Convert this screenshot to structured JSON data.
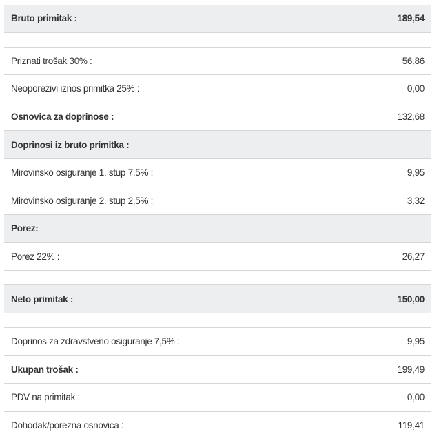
{
  "rows": [
    {
      "type": "header",
      "label": "Bruto primitak :",
      "value": "189,54"
    },
    {
      "type": "spacer"
    },
    {
      "type": "row",
      "label": "Priznati trošak 30% :",
      "value": "56,86"
    },
    {
      "type": "row",
      "label": "Neoporezivi iznos primitka 25% :",
      "value": "0,00"
    },
    {
      "type": "boldrow",
      "label": "Osnovica za doprinose :",
      "value": "132,68"
    },
    {
      "type": "section",
      "label": "Doprinosi iz bruto primitka :",
      "value": ""
    },
    {
      "type": "row",
      "label": "Mirovinsko osiguranje 1. stup 7,5% :",
      "value": "9,95"
    },
    {
      "type": "row",
      "label": "Mirovinsko osiguranje 2. stup 2,5% :",
      "value": "3,32"
    },
    {
      "type": "section",
      "label": "Porez:",
      "value": ""
    },
    {
      "type": "row",
      "label": "Porez 22% :",
      "value": "26,27"
    },
    {
      "type": "spacer"
    },
    {
      "type": "header",
      "label": "Neto primitak :",
      "value": "150,00"
    },
    {
      "type": "spacer"
    },
    {
      "type": "row",
      "label": "Doprinos za zdravstveno osiguranje 7,5% :",
      "value": "9,95"
    },
    {
      "type": "boldrow",
      "label": "Ukupan trošak :",
      "value": "199,49"
    },
    {
      "type": "row",
      "label": "PDV na primitak :",
      "value": "0,00"
    },
    {
      "type": "row",
      "label": "Dohodak/porezna osnovica :",
      "value": "119,41"
    }
  ],
  "colors": {
    "header_bg": "#eceef0",
    "text": "#333333",
    "border": "#d6d6d6"
  }
}
